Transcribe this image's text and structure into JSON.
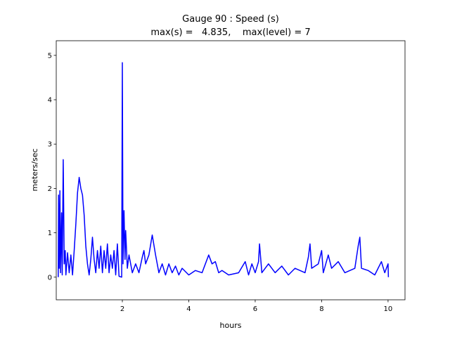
{
  "chart_data": {
    "type": "line",
    "title": [
      "Gauge 90 : Speed (s)",
      "max(s) =   4.835,    max(level) = 7"
    ],
    "xlabel": "hours",
    "ylabel": "meters/sec",
    "xlim": [
      0.01,
      10.51
    ],
    "ylim": [
      -0.51,
      5.33
    ],
    "xticks": [
      2,
      4,
      6,
      8,
      10
    ],
    "yticks": [
      0,
      1,
      2,
      3,
      4,
      5
    ],
    "series": [
      {
        "color": "#0000ff",
        "x": [
          0.07,
          0.08,
          0.1,
          0.12,
          0.14,
          0.17,
          0.19,
          0.22,
          0.25,
          0.28,
          0.3,
          0.35,
          0.4,
          0.45,
          0.5,
          0.55,
          0.6,
          0.65,
          0.7,
          0.75,
          0.8,
          0.85,
          0.9,
          0.95,
          1.0,
          1.05,
          1.1,
          1.15,
          1.2,
          1.25,
          1.3,
          1.35,
          1.4,
          1.45,
          1.5,
          1.55,
          1.6,
          1.65,
          1.7,
          1.75,
          1.8,
          1.85,
          1.9,
          1.98,
          2.0,
          2.02,
          2.05,
          2.08,
          2.1,
          2.15,
          2.2,
          2.3,
          2.4,
          2.5,
          2.6,
          2.65,
          2.7,
          2.8,
          2.9,
          3.0,
          3.1,
          3.2,
          3.3,
          3.4,
          3.5,
          3.6,
          3.7,
          3.8,
          4.0,
          4.2,
          4.4,
          4.6,
          4.7,
          4.8,
          4.9,
          5.0,
          5.2,
          5.5,
          5.7,
          5.8,
          5.9,
          6.0,
          6.1,
          6.13,
          6.2,
          6.4,
          6.6,
          6.8,
          7.0,
          7.2,
          7.5,
          7.6,
          7.65,
          7.7,
          7.9,
          8.0,
          8.05,
          8.2,
          8.3,
          8.5,
          8.7,
          9.0,
          9.1,
          9.15,
          9.2,
          9.4,
          9.6,
          9.8,
          9.9,
          10.0,
          10.01
        ],
        "values": [
          0,
          1.85,
          0.2,
          1.95,
          0.1,
          1.45,
          0.05,
          2.65,
          0.3,
          0.6,
          0.05,
          0.55,
          0.1,
          0.5,
          0.05,
          0.6,
          1.2,
          1.9,
          2.25,
          2.0,
          1.85,
          1.4,
          0.7,
          0.3,
          0.05,
          0.4,
          0.9,
          0.4,
          0.1,
          0.6,
          0.2,
          0.7,
          0.1,
          0.6,
          0.2,
          0.75,
          0.1,
          0.5,
          0.2,
          0.6,
          0.05,
          0.75,
          0.02,
          0.0,
          4.835,
          0.3,
          1.5,
          0.4,
          1.05,
          0.2,
          0.5,
          0.1,
          0.3,
          0.1,
          0.45,
          0.6,
          0.3,
          0.5,
          0.95,
          0.5,
          0.1,
          0.3,
          0.05,
          0.3,
          0.1,
          0.25,
          0.05,
          0.2,
          0.05,
          0.15,
          0.1,
          0.5,
          0.3,
          0.35,
          0.1,
          0.15,
          0.05,
          0.1,
          0.35,
          0.05,
          0.3,
          0.1,
          0.35,
          0.75,
          0.1,
          0.3,
          0.1,
          0.25,
          0.05,
          0.2,
          0.1,
          0.45,
          0.75,
          0.2,
          0.3,
          0.6,
          0.1,
          0.5,
          0.2,
          0.35,
          0.1,
          0.2,
          0.7,
          0.9,
          0.2,
          0.15,
          0.05,
          0.35,
          0.1,
          0.3,
          0.0
        ]
      }
    ]
  }
}
